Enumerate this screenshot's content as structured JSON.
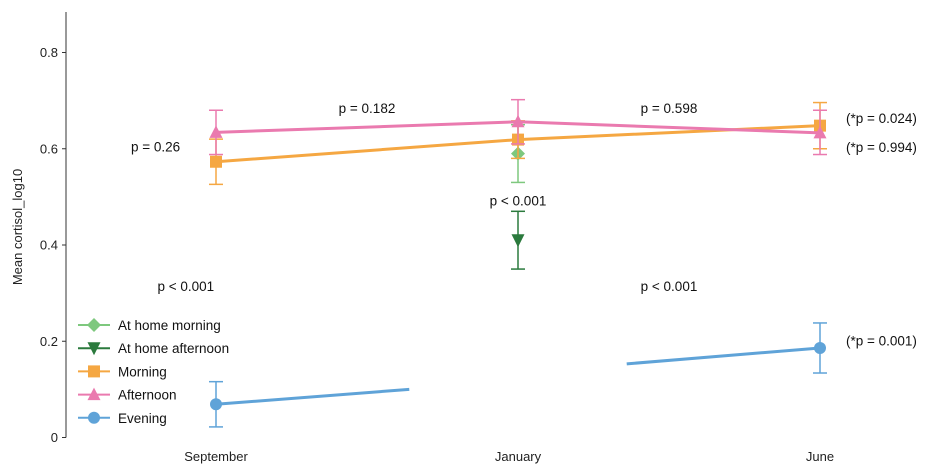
{
  "chart_data": {
    "type": "line",
    "title": "",
    "xlabel": "",
    "ylabel": "Mean cortisol_log10",
    "categories": [
      "September",
      "January",
      "June"
    ],
    "ylim": [
      0,
      0.88
    ],
    "yticks": [
      0,
      0.2,
      0.4,
      0.6,
      0.8
    ],
    "ytick_labels": [
      "0",
      "0.2",
      "0.4",
      "0.6",
      "0.8"
    ],
    "grid": false,
    "legend": {
      "position": "bottom-left",
      "entries": [
        "At home morning",
        "At home afternoon",
        "Morning",
        "Afternoon",
        "Evening"
      ]
    },
    "series": [
      {
        "name": "At home morning",
        "color": "#7ec87e",
        "marker": "diamond",
        "connected": false,
        "points": [
          {
            "x": "January",
            "y": 0.59,
            "err_low": 0.53,
            "err_high": 0.65
          }
        ]
      },
      {
        "name": "At home afternoon",
        "color": "#2b7a3d",
        "marker": "triangle-down",
        "connected": false,
        "points": [
          {
            "x": "January",
            "y": 0.41,
            "err_low": 0.35,
            "err_high": 0.47
          }
        ]
      },
      {
        "name": "Morning",
        "color": "#f5a742",
        "marker": "square",
        "connected": true,
        "points": [
          {
            "x": "September",
            "y": 0.573,
            "err_low": 0.526,
            "err_high": 0.62
          },
          {
            "x": "January",
            "y": 0.619,
            "err_low": 0.58,
            "err_high": 0.658
          },
          {
            "x": "June",
            "y": 0.648,
            "err_low": 0.6,
            "err_high": 0.696
          }
        ]
      },
      {
        "name": "Afternoon",
        "color": "#ea7aaf",
        "marker": "triangle-up",
        "connected": true,
        "points": [
          {
            "x": "September",
            "y": 0.634,
            "err_low": 0.588,
            "err_high": 0.68
          },
          {
            "x": "January",
            "y": 0.656,
            "err_low": 0.61,
            "err_high": 0.702
          },
          {
            "x": "June",
            "y": 0.633,
            "err_low": 0.588,
            "err_high": 0.68
          }
        ]
      },
      {
        "name": "Evening",
        "color": "#5fa3d8",
        "marker": "circle",
        "connected": false,
        "points": [
          {
            "x": "September",
            "y": 0.069,
            "err_low": 0.022,
            "err_high": 0.116
          },
          {
            "x": "June",
            "y": 0.186,
            "err_low": 0.134,
            "err_high": 0.238
          }
        ],
        "partial_segments": [
          {
            "from_x": "September",
            "from_y": 0.069,
            "to_pos": 0.32,
            "to_y": 0.1
          },
          {
            "from_pos": 0.68,
            "from_y": 0.153,
            "to_x": "June",
            "to_y": 0.186
          }
        ]
      }
    ],
    "annotations": [
      {
        "text": "p = 0.26",
        "pos": -0.1,
        "y": 0.605
      },
      {
        "text": "p = 0.182",
        "pos": 0.25,
        "y": 0.685
      },
      {
        "text": "p = 0.598",
        "pos": 0.75,
        "y": 0.685
      },
      {
        "text": "p < 0.001",
        "pos": 0.5,
        "y": 0.492
      },
      {
        "text": "(*p = 0.024)",
        "pos": 1.1,
        "y": 0.664
      },
      {
        "text": "(*p = 0.994)",
        "pos": 1.1,
        "y": 0.604
      },
      {
        "text": "p < 0.001",
        "pos": -0.05,
        "y": 0.315
      },
      {
        "text": "p < 0.001",
        "pos": 0.75,
        "y": 0.315
      },
      {
        "text": "(*p = 0.001)",
        "pos": 1.1,
        "y": 0.202
      }
    ]
  }
}
